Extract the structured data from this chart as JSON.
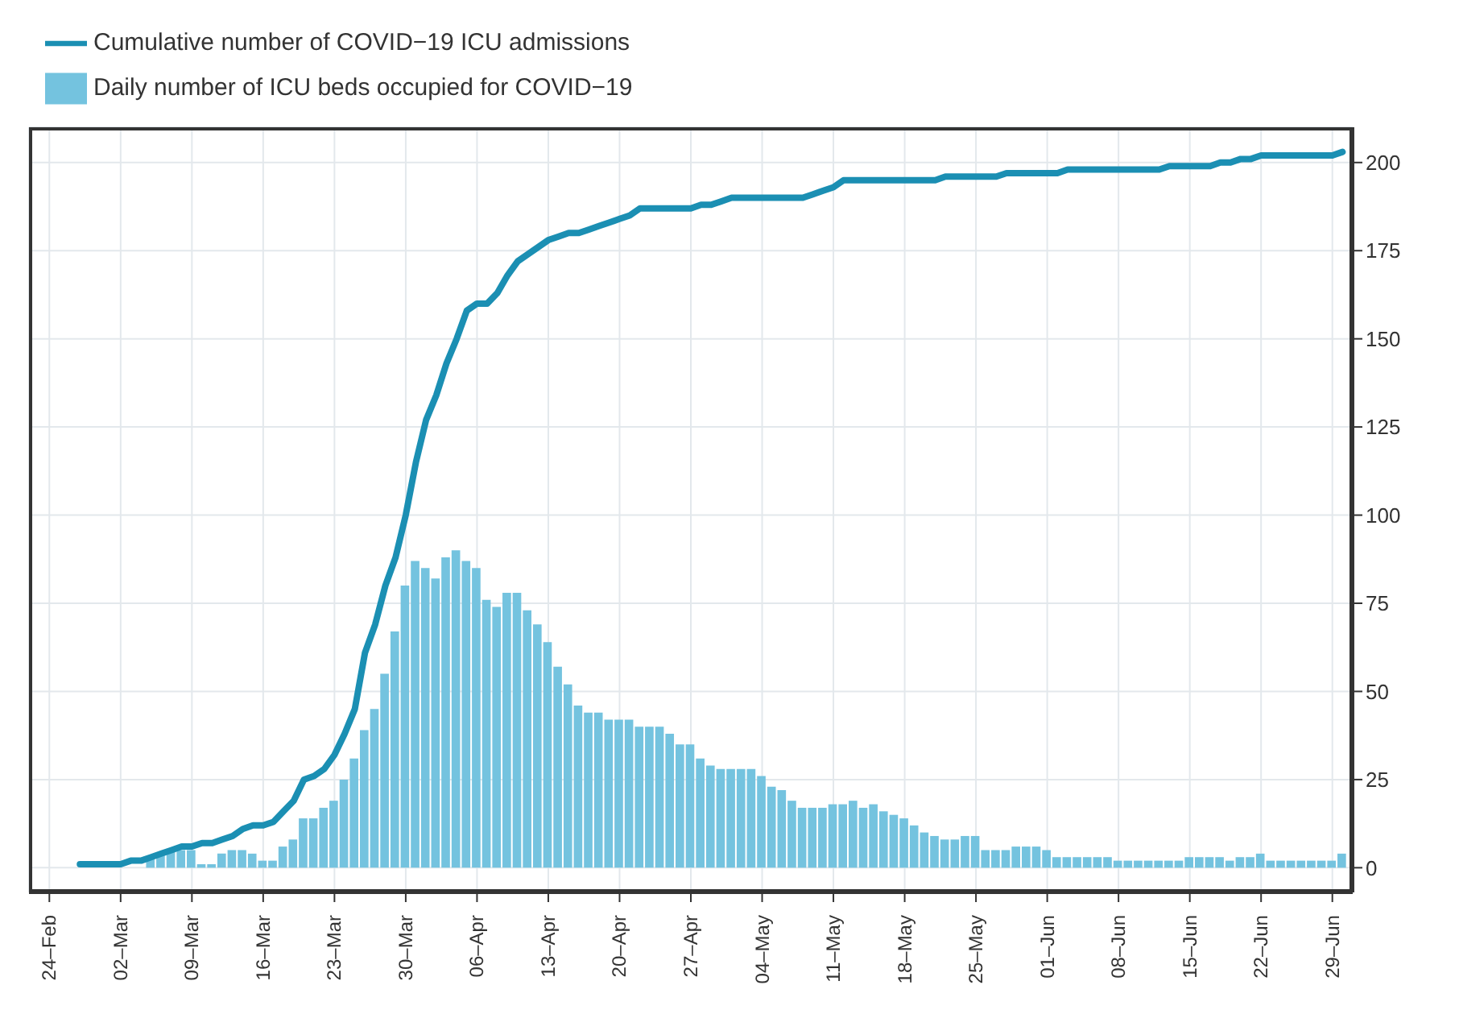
{
  "chart_data": {
    "type": "bar",
    "x": [
      "--02-27",
      "--02-28",
      "--02-29",
      "--03-01",
      "--03-02",
      "--03-03",
      "--03-04",
      "--03-05",
      "--03-06",
      "--03-07",
      "--03-08",
      "--03-09",
      "--03-10",
      "--03-11",
      "--03-12",
      "--03-13",
      "--03-14",
      "--03-15",
      "--03-16",
      "--03-17",
      "--03-18",
      "--03-19",
      "--03-20",
      "--03-21",
      "--03-22",
      "--03-23",
      "--03-24",
      "--03-25",
      "--03-26",
      "--03-27",
      "--03-28",
      "--03-29",
      "--03-30",
      "--03-31",
      "--04-01",
      "--04-02",
      "--04-03",
      "--04-04",
      "--04-05",
      "--04-06",
      "--04-07",
      "--04-08",
      "--04-09",
      "--04-10",
      "--04-11",
      "--04-12",
      "--04-13",
      "--04-14",
      "--04-15",
      "--04-16",
      "--04-17",
      "--04-18",
      "--04-19",
      "--04-20",
      "--04-21",
      "--04-22",
      "--04-23",
      "--04-24",
      "--04-25",
      "--04-26",
      "--04-27",
      "--04-28",
      "--04-29",
      "--04-30",
      "--05-01",
      "--05-02",
      "--05-03",
      "--05-04",
      "--05-05",
      "--05-06",
      "--05-07",
      "--05-08",
      "--05-09",
      "--05-10",
      "--05-11",
      "--05-12",
      "--05-13",
      "--05-14",
      "--05-15",
      "--05-16",
      "--05-17",
      "--05-18",
      "--05-19",
      "--05-20",
      "--05-21",
      "--05-22",
      "--05-23",
      "--05-24",
      "--05-25",
      "--05-26",
      "--05-27",
      "--05-28",
      "--05-29",
      "--05-30",
      "--05-31",
      "--06-01",
      "--06-02",
      "--06-03",
      "--06-04",
      "--06-05",
      "--06-06",
      "--06-07",
      "--06-08",
      "--06-09",
      "--06-10",
      "--06-11",
      "--06-12",
      "--06-13",
      "--06-14",
      "--06-15",
      "--06-16",
      "--06-17",
      "--06-18",
      "--06-19",
      "--06-20",
      "--06-21",
      "--06-22",
      "--06-23",
      "--06-24",
      "--06-25",
      "--06-26",
      "--06-27",
      "--06-28",
      "--06-29",
      "--06-30"
    ],
    "series": [
      {
        "name": "Cumulative number of COVID−19 ICU admissions",
        "type": "line",
        "color": "#1b8fb3",
        "values": [
          1,
          1,
          1,
          1,
          1,
          2,
          2,
          3,
          4,
          5,
          6,
          6,
          7,
          7,
          8,
          9,
          11,
          12,
          12,
          13,
          16,
          19,
          25,
          26,
          28,
          32,
          38,
          45,
          61,
          69,
          80,
          88,
          100,
          115,
          127,
          134,
          143,
          150,
          158,
          160,
          160,
          163,
          168,
          172,
          174,
          176,
          178,
          179,
          180,
          180,
          181,
          182,
          183,
          184,
          185,
          187,
          187,
          187,
          187,
          187,
          187,
          188,
          188,
          189,
          190,
          190,
          190,
          190,
          190,
          190,
          190,
          190,
          191,
          192,
          193,
          195,
          195,
          195,
          195,
          195,
          195,
          195,
          195,
          195,
          195,
          196,
          196,
          196,
          196,
          196,
          196,
          197,
          197,
          197,
          197,
          197,
          197,
          198,
          198,
          198,
          198,
          198,
          198,
          198,
          198,
          198,
          198,
          199,
          199,
          199,
          199,
          199,
          200,
          200,
          201,
          201,
          202,
          202,
          202,
          202,
          202,
          202,
          202,
          202,
          203
        ]
      },
      {
        "name": "Daily number of ICU beds occupied for COVID−19",
        "color": "#74c3df",
        "values": [
          null,
          null,
          null,
          null,
          null,
          null,
          null,
          3,
          4,
          5,
          5,
          5,
          1,
          1,
          4,
          5,
          5,
          4,
          2,
          2,
          6,
          8,
          14,
          14,
          17,
          19,
          25,
          31,
          39,
          45,
          55,
          67,
          80,
          87,
          85,
          82,
          88,
          90,
          87,
          85,
          76,
          74,
          78,
          78,
          73,
          69,
          64,
          57,
          52,
          46,
          44,
          44,
          42,
          42,
          42,
          40,
          40,
          40,
          38,
          35,
          35,
          31,
          29,
          28,
          28,
          28,
          28,
          26,
          23,
          22,
          19,
          17,
          17,
          17,
          18,
          18,
          19,
          17,
          18,
          16,
          15,
          14,
          12,
          10,
          9,
          8,
          8,
          9,
          9,
          5,
          5,
          5,
          6,
          6,
          6,
          5,
          3,
          3,
          3,
          3,
          3,
          3,
          2,
          2,
          2,
          2,
          2,
          2,
          2,
          3,
          3,
          3,
          3,
          2,
          3,
          3,
          4,
          2,
          2,
          2,
          2,
          2,
          2,
          2,
          4
        ]
      }
    ],
    "xlim": [
      "--02-22",
      "--07-01"
    ],
    "xticks": [
      {
        "value": "--02-24",
        "label": "24–Feb"
      },
      {
        "value": "--03-02",
        "label": "02–Mar"
      },
      {
        "value": "--03-09",
        "label": "09–Mar"
      },
      {
        "value": "--03-16",
        "label": "16–Mar"
      },
      {
        "value": "--03-23",
        "label": "23–Mar"
      },
      {
        "value": "--03-30",
        "label": "30–Mar"
      },
      {
        "value": "--04-06",
        "label": "06–Apr"
      },
      {
        "value": "--04-13",
        "label": "13–Apr"
      },
      {
        "value": "--04-20",
        "label": "20–Apr"
      },
      {
        "value": "--04-27",
        "label": "27–Apr"
      },
      {
        "value": "--05-04",
        "label": "04–May"
      },
      {
        "value": "--05-11",
        "label": "11–May"
      },
      {
        "value": "--05-18",
        "label": "18–May"
      },
      {
        "value": "--05-25",
        "label": "25–May"
      },
      {
        "value": "--06-01",
        "label": "01–Jun"
      },
      {
        "value": "--06-08",
        "label": "08–Jun"
      },
      {
        "value": "--06-15",
        "label": "15–Jun"
      },
      {
        "value": "--06-22",
        "label": "22–Jun"
      },
      {
        "value": "--06-29",
        "label": "29–Jun"
      }
    ],
    "ylim": [
      -7,
      210
    ],
    "yticks": [
      0,
      25,
      50,
      75,
      100,
      125,
      150,
      175,
      200
    ],
    "grid": true,
    "legend": "top left"
  }
}
